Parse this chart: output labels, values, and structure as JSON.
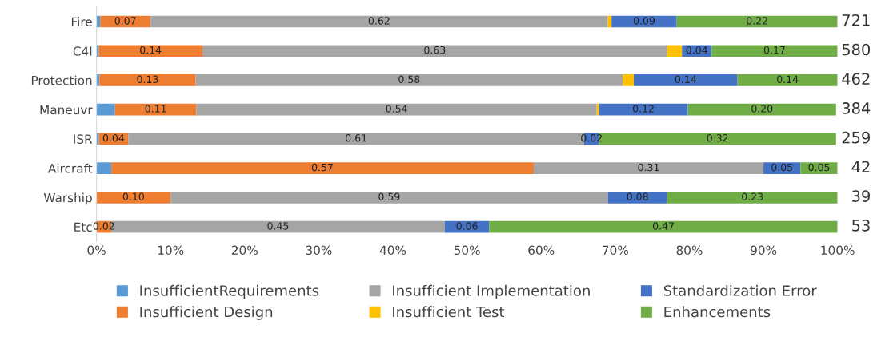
{
  "chart_data": {
    "type": "bar",
    "orientation": "horizontal",
    "stacked": true,
    "categories": [
      "Fire",
      "C4I",
      "Protection",
      "Maneuvr",
      "ISR",
      "Aircraft",
      "Warship",
      "Etc"
    ],
    "series": [
      {
        "name": "InsufficientRequirements",
        "color": "#5b9bd5",
        "values": [
          0.005,
          0.003,
          0.004,
          0.025,
          0.003,
          0.02,
          0,
          0
        ],
        "value_labels": [
          null,
          null,
          null,
          null,
          null,
          null,
          null,
          null
        ]
      },
      {
        "name": "Insufficient Design",
        "color": "#ed7d31",
        "values": [
          0.068,
          0.14,
          0.13,
          0.11,
          0.04,
          0.57,
          0.1,
          0.02
        ],
        "value_labels": [
          "0.07",
          "0.14",
          "0.13",
          "0.11",
          "0.04",
          "0.57",
          "0.10",
          "0.02"
        ]
      },
      {
        "name": "Insufficient Implementation",
        "color": "#a5a5a5",
        "values": [
          0.617,
          0.627,
          0.576,
          0.54,
          0.615,
          0.31,
          0.59,
          0.45
        ],
        "value_labels": [
          "0.62",
          "0.63",
          "0.58",
          "0.54",
          "0.61",
          "0.31",
          "0.59",
          "0.45"
        ]
      },
      {
        "name": "Insufficient Test",
        "color": "#ffc000",
        "values": [
          0.005,
          0.02,
          0.015,
          0.003,
          0,
          0,
          0,
          0
        ],
        "value_labels": [
          null,
          null,
          null,
          null,
          null,
          null,
          null,
          null
        ]
      },
      {
        "name": "Standardization Error",
        "color": "#4472c4",
        "values": [
          0.088,
          0.04,
          0.14,
          0.12,
          0.02,
          0.05,
          0.08,
          0.06
        ],
        "value_labels": [
          "0.09",
          "0.04",
          "0.14",
          "0.12",
          "0.02",
          "0.05",
          "0.08",
          "0.06"
        ]
      },
      {
        "name": "Enhancements",
        "color": "#70ad47",
        "values": [
          0.217,
          0.17,
          0.135,
          0.2,
          0.32,
          0.05,
          0.23,
          0.47
        ],
        "value_labels": [
          "0.22",
          "0.17",
          "0.14",
          "0.20",
          "0.32",
          "0.05",
          "0.23",
          "0.47"
        ]
      }
    ],
    "annotations": [
      "721",
      "580",
      "462",
      "384",
      "259",
      "42",
      "39",
      "53"
    ],
    "xlim": [
      0,
      1
    ],
    "xticks": [
      {
        "value": 0,
        "label": "0%"
      },
      {
        "value": 0.1,
        "label": "10%"
      },
      {
        "value": 0.2,
        "label": "20%"
      },
      {
        "value": 0.3,
        "label": "30%"
      },
      {
        "value": 0.4,
        "label": "40%"
      },
      {
        "value": 0.5,
        "label": "50%"
      },
      {
        "value": 0.6,
        "label": "60%"
      },
      {
        "value": 0.7,
        "label": "70%"
      },
      {
        "value": 0.8,
        "label": "80%"
      },
      {
        "value": 0.9,
        "label": "90%"
      },
      {
        "value": 1,
        "label": "100%"
      }
    ],
    "grid": false,
    "legend": "bottom"
  }
}
